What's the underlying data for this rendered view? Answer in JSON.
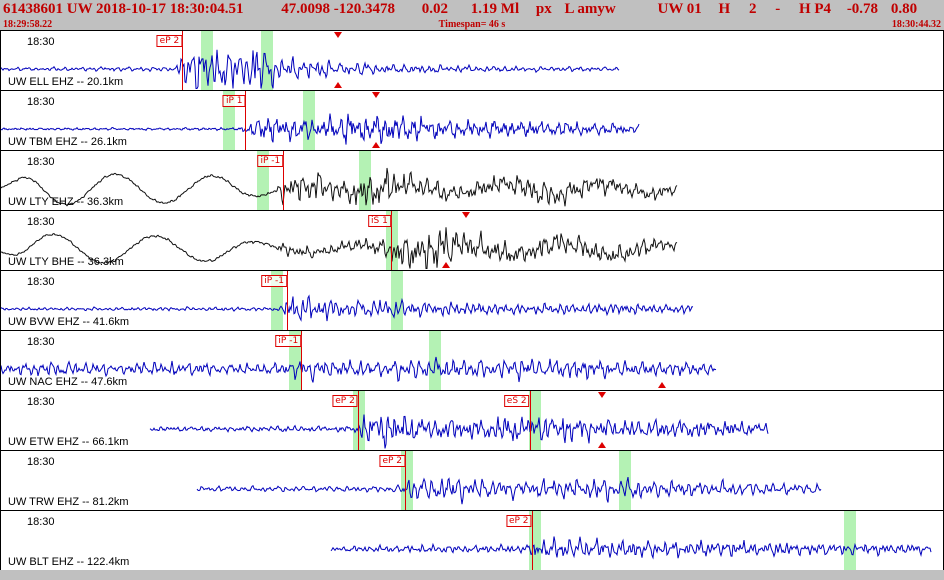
{
  "header": {
    "line1_parts": [
      "61438601 UW 2018-10-17 18:30:04.51",
      "47.0098 -120.3478",
      "0.02",
      "1.19 Ml",
      "px",
      "L amyw",
      "UW 01",
      "H",
      "2",
      "-",
      "H P4",
      "-0.78",
      "0.80"
    ],
    "start_time": "18:29:58.22",
    "timespan": "Timespan=  46 s",
    "end_time": "18:30:44.32"
  },
  "colors": {
    "header_bg": "#c0c0c0",
    "header_text": "#c00000",
    "trace_blue": "#0000bb",
    "trace_black": "#101010",
    "pick_red": "#dd0000",
    "band_green": "#b4f2b4",
    "border": "#000000"
  },
  "traces": [
    {
      "id": "ELL-EHZ",
      "time_label": "18:30",
      "station_label": "UW ELL EHZ -- 20.1km",
      "color_key": "trace_blue",
      "start": 0.0,
      "end": 0.655,
      "env": [
        [
          0,
          1.5
        ],
        [
          0.185,
          1.8
        ],
        [
          0.195,
          17
        ],
        [
          0.215,
          22
        ],
        [
          0.245,
          16
        ],
        [
          0.27,
          20
        ],
        [
          0.3,
          10
        ],
        [
          0.36,
          6
        ],
        [
          0.42,
          4
        ],
        [
          0.5,
          2.6
        ],
        [
          0.62,
          1.8
        ],
        [
          0.655,
          1.5
        ]
      ],
      "picks": [
        {
          "label": "eP 2",
          "frac": 0.192
        }
      ],
      "bands": [
        0.212,
        0.2755
      ],
      "triangles": [
        {
          "frac": 0.357,
          "edge": "top"
        },
        {
          "frac": 0.357,
          "edge": "bottom"
        }
      ]
    },
    {
      "id": "TBM-EHZ",
      "time_label": "18:30",
      "station_label": "UW TBM EHZ -- 26.1km",
      "color_key": "trace_blue",
      "start": 0.0,
      "end": 0.676,
      "env": [
        [
          0,
          0.9
        ],
        [
          0.252,
          1.1
        ],
        [
          0.262,
          8
        ],
        [
          0.29,
          10
        ],
        [
          0.33,
          8
        ],
        [
          0.385,
          14
        ],
        [
          0.43,
          11
        ],
        [
          0.47,
          8
        ],
        [
          0.52,
          7
        ],
        [
          0.58,
          6.5
        ],
        [
          0.63,
          5
        ],
        [
          0.676,
          4
        ]
      ],
      "picks": [
        {
          "label": "iP 1",
          "frac": 0.259
        }
      ],
      "bands": [
        0.235,
        0.32
      ],
      "triangles": [
        {
          "frac": 0.397,
          "edge": "top"
        },
        {
          "frac": 0.397,
          "edge": "bottom"
        }
      ]
    },
    {
      "id": "LTY-EHZ",
      "time_label": "18:30",
      "station_label": "UW LTY EHZ -- 36.3km",
      "color_key": "trace_black",
      "start": 0.0,
      "end": 0.716,
      "env": [
        [
          0,
          0.9
        ],
        [
          0.29,
          1.2
        ],
        [
          0.3,
          10
        ],
        [
          0.32,
          13
        ],
        [
          0.36,
          9
        ],
        [
          0.41,
          15
        ],
        [
          0.45,
          10
        ],
        [
          0.49,
          6
        ],
        [
          0.53,
          8
        ],
        [
          0.57,
          11
        ],
        [
          0.61,
          8
        ],
        [
          0.66,
          7
        ],
        [
          0.7,
          6
        ],
        [
          0.716,
          4
        ]
      ],
      "lf": {
        "period": 0.103,
        "pts": [
          [
            0,
            3
          ],
          [
            0.035,
            16
          ],
          [
            0.24,
            13
          ],
          [
            0.295,
            3
          ],
          [
            0.45,
            4
          ],
          [
            0.6,
            6
          ],
          [
            0.716,
            4
          ]
        ]
      },
      "picks": [
        {
          "label": "iP -1",
          "frac": 0.299
        }
      ],
      "bands": [
        0.271,
        0.379
      ],
      "triangles": []
    },
    {
      "id": "LTY-BHE",
      "time_label": "18:30",
      "station_label": "UW LTY BHE -- 36.3km",
      "color_key": "trace_black",
      "start": 0.0,
      "end": 0.716,
      "env": [
        [
          0,
          0.9
        ],
        [
          0.29,
          1.2
        ],
        [
          0.3,
          5
        ],
        [
          0.35,
          4
        ],
        [
          0.4,
          6
        ],
        [
          0.425,
          14
        ],
        [
          0.465,
          18
        ],
        [
          0.5,
          10
        ],
        [
          0.55,
          8
        ],
        [
          0.6,
          10
        ],
        [
          0.645,
          7
        ],
        [
          0.68,
          8
        ],
        [
          0.716,
          5
        ]
      ],
      "lf": {
        "period": 0.108,
        "pts": [
          [
            0,
            3
          ],
          [
            0.035,
            15
          ],
          [
            0.23,
            12
          ],
          [
            0.3,
            3.5
          ],
          [
            0.5,
            4.5
          ],
          [
            0.66,
            6.5
          ],
          [
            0.716,
            4
          ]
        ]
      },
      "picks": [
        {
          "label": "iS 1",
          "frac": 0.413
        }
      ],
      "bands": [
        0.408
      ],
      "triangles": [
        {
          "frac": 0.493,
          "edge": "top"
        },
        {
          "frac": 0.471,
          "edge": "bottom"
        }
      ]
    },
    {
      "id": "BVW-EHZ",
      "time_label": "18:30",
      "station_label": "UW BVW EHZ -- 41.6km",
      "color_key": "trace_blue",
      "start": 0.0,
      "end": 0.733,
      "env": [
        [
          0,
          1.2
        ],
        [
          0.296,
          1.4
        ],
        [
          0.305,
          13
        ],
        [
          0.325,
          9
        ],
        [
          0.36,
          6
        ],
        [
          0.41,
          7.5
        ],
        [
          0.45,
          5
        ],
        [
          0.5,
          4.5
        ],
        [
          0.56,
          4
        ],
        [
          0.62,
          4.2
        ],
        [
          0.68,
          3.6
        ],
        [
          0.733,
          3
        ]
      ],
      "picks": [
        {
          "label": "iP -1",
          "frac": 0.303
        }
      ],
      "bands": [
        0.286,
        0.413
      ],
      "triangles": []
    },
    {
      "id": "NAC-EHZ",
      "time_label": "18:30",
      "station_label": "UW NAC EHZ -- 47.6km",
      "color_key": "trace_blue",
      "start": 0.0,
      "end": 0.757,
      "env": [
        [
          0,
          4.5
        ],
        [
          0.06,
          6.5
        ],
        [
          0.12,
          5
        ],
        [
          0.18,
          7
        ],
        [
          0.24,
          5
        ],
        [
          0.3,
          6
        ],
        [
          0.32,
          10
        ],
        [
          0.36,
          7.5
        ],
        [
          0.4,
          8.5
        ],
        [
          0.45,
          9.5
        ],
        [
          0.5,
          8
        ],
        [
          0.55,
          9.5
        ],
        [
          0.6,
          9
        ],
        [
          0.65,
          7.5
        ],
        [
          0.7,
          6.5
        ],
        [
          0.757,
          5
        ]
      ],
      "picks": [
        {
          "label": "iP -1",
          "frac": 0.318
        }
      ],
      "bands": [
        0.305,
        0.453
      ],
      "triangles": [
        {
          "frac": 0.7,
          "edge": "bottom"
        }
      ]
    },
    {
      "id": "ETW-EHZ",
      "time_label": "18:30",
      "station_label": "UW ETW EHZ -- 66.1km",
      "color_key": "trace_blue",
      "start": 0.158,
      "end": 0.812,
      "env": [
        [
          0.158,
          2.2
        ],
        [
          0.372,
          2.6
        ],
        [
          0.382,
          13
        ],
        [
          0.41,
          16
        ],
        [
          0.45,
          10
        ],
        [
          0.5,
          9
        ],
        [
          0.55,
          11
        ],
        [
          0.585,
          13
        ],
        [
          0.62,
          10
        ],
        [
          0.66,
          9
        ],
        [
          0.71,
          8
        ],
        [
          0.76,
          7
        ],
        [
          0.812,
          5
        ]
      ],
      "picks": [
        {
          "label": "eP 2",
          "frac": 0.378
        },
        {
          "label": "eS 2",
          "frac": 0.56
        }
      ],
      "bands": [
        0.373,
        0.559
      ],
      "triangles": [
        {
          "frac": 0.637,
          "edge": "top"
        },
        {
          "frac": 0.637,
          "edge": "bottom"
        }
      ]
    },
    {
      "id": "TRW-EHZ",
      "time_label": "18:30",
      "station_label": "UW TRW EHZ -- 81.2km",
      "color_key": "trace_blue",
      "start": 0.208,
      "end": 0.869,
      "env": [
        [
          0.208,
          2.2
        ],
        [
          0.421,
          2.6
        ],
        [
          0.43,
          10
        ],
        [
          0.465,
          12
        ],
        [
          0.5,
          8
        ],
        [
          0.55,
          7
        ],
        [
          0.6,
          8.5
        ],
        [
          0.655,
          9
        ],
        [
          0.7,
          7
        ],
        [
          0.76,
          6
        ],
        [
          0.81,
          5.5
        ],
        [
          0.869,
          4
        ]
      ],
      "picks": [
        {
          "label": "eP 2",
          "frac": 0.428
        }
      ],
      "bands": [
        0.424,
        0.655
      ],
      "triangles": []
    },
    {
      "id": "BLT-EHZ",
      "time_label": "18:30",
      "station_label": "UW BLT EHZ -- 122.4km",
      "color_key": "trace_blue",
      "start": 0.35,
      "end": 0.985,
      "env": [
        [
          0.35,
          2.2
        ],
        [
          0.45,
          3
        ],
        [
          0.556,
          2.8
        ],
        [
          0.565,
          7.5
        ],
        [
          0.6,
          9.5
        ],
        [
          0.65,
          7
        ],
        [
          0.7,
          6
        ],
        [
          0.75,
          6.5
        ],
        [
          0.8,
          5.5
        ],
        [
          0.86,
          5
        ],
        [
          0.92,
          4.5
        ],
        [
          0.985,
          4
        ]
      ],
      "picks": [
        {
          "label": "eP 2",
          "frac": 0.562
        }
      ],
      "bands": [
        0.559,
        0.893
      ],
      "triangles": []
    }
  ]
}
